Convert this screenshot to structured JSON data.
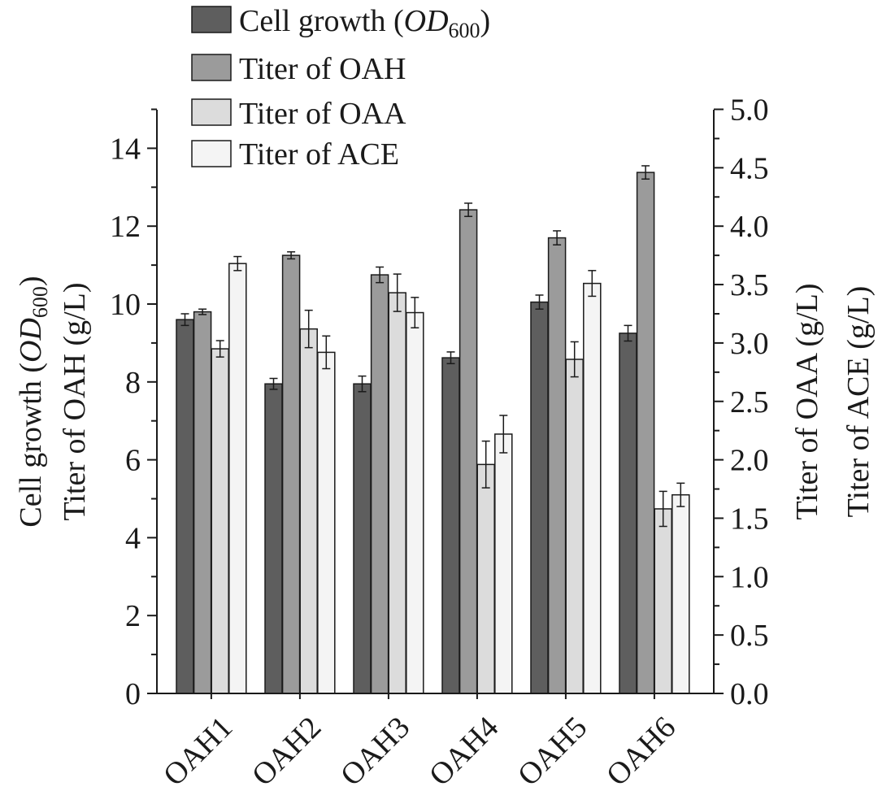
{
  "chart_data": {
    "type": "bar",
    "categories": [
      "OAH1",
      "OAH2",
      "OAH3",
      "OAH4",
      "OAH5",
      "OAH6"
    ],
    "series": [
      {
        "name": "Cell growth (OD600)",
        "legend_prefix": "Cell growth (",
        "legend_italic": "OD",
        "legend_sub": "600",
        "legend_suffix": ")",
        "axis": "left",
        "color": "#5e5e5e",
        "values": [
          9.6,
          7.95,
          7.95,
          8.62,
          10.05,
          9.25
        ],
        "errors": [
          0.15,
          0.14,
          0.2,
          0.15,
          0.18,
          0.2
        ]
      },
      {
        "name": "Titer of OAH",
        "axis": "left",
        "color": "#9b9b9b",
        "values": [
          9.8,
          11.25,
          10.75,
          12.42,
          11.7,
          13.38
        ],
        "errors": [
          0.07,
          0.09,
          0.2,
          0.17,
          0.18,
          0.17
        ]
      },
      {
        "name": "Titer of OAA",
        "axis": "right",
        "color": "#dcdcdc",
        "values": [
          2.95,
          3.12,
          3.43,
          1.96,
          2.86,
          1.58
        ],
        "errors": [
          0.07,
          0.16,
          0.16,
          0.2,
          0.15,
          0.15
        ]
      },
      {
        "name": "Titer of ACE",
        "axis": "right",
        "color": "#f4f4f4",
        "values": [
          3.68,
          2.92,
          3.26,
          2.22,
          3.51,
          1.7
        ],
        "errors": [
          0.06,
          0.14,
          0.13,
          0.16,
          0.11,
          0.1
        ]
      }
    ],
    "left_axis": {
      "ylim": [
        0,
        15
      ],
      "ticks": [
        0,
        2,
        4,
        6,
        8,
        10,
        12,
        14
      ],
      "label_line1_prefix": "Cell growth (",
      "label_line1_italic": "OD",
      "label_line1_sub": "600",
      "label_line1_suffix": ")",
      "label_line2": "Titer of OAH (g/L)"
    },
    "right_axis": {
      "ylim": [
        0,
        5
      ],
      "ticks": [
        "0.0",
        "0.5",
        "1.0",
        "1.5",
        "2.0",
        "2.5",
        "3.0",
        "3.5",
        "4.0",
        "4.5",
        "5.0"
      ],
      "label_line1": "Titer of OAA (g/L)",
      "label_line2": "Titer of ACE (g/L)"
    },
    "legend_position": "top-left",
    "grid": false
  }
}
